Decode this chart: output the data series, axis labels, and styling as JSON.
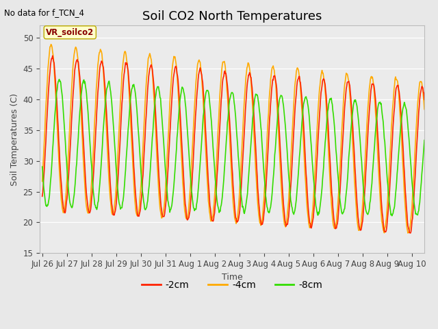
{
  "title": "Soil CO2 North Temperatures",
  "subtitle": "No data for f_TCN_4",
  "xlabel": "Time",
  "ylabel": "Soil Temperatures (C)",
  "ylim": [
    15,
    52
  ],
  "yticks": [
    15,
    20,
    25,
    30,
    35,
    40,
    45,
    50
  ],
  "legend_label": "VR_soilco2",
  "series_labels": [
    "-2cm",
    "-4cm",
    "-8cm"
  ],
  "colors": [
    "#ff2200",
    "#ffaa00",
    "#33dd00"
  ],
  "background_color": "#e8e8e8",
  "plot_bg_color": "#ebebeb",
  "tick_labels": [
    "Jul 26",
    "Jul 27",
    "Jul 28",
    "Jul 29",
    "Jul 30",
    "Jul 31",
    "Aug 1",
    "Aug 2",
    "Aug 3",
    "Aug 4",
    "Aug 5",
    "Aug 6",
    "Aug 7",
    "Aug 8",
    "Aug 9Aug 10"
  ],
  "title_fontsize": 13,
  "label_fontsize": 9,
  "tick_fontsize": 8.5,
  "linewidth": 1.2,
  "figsize": [
    6.4,
    4.8
  ],
  "dpi": 100
}
